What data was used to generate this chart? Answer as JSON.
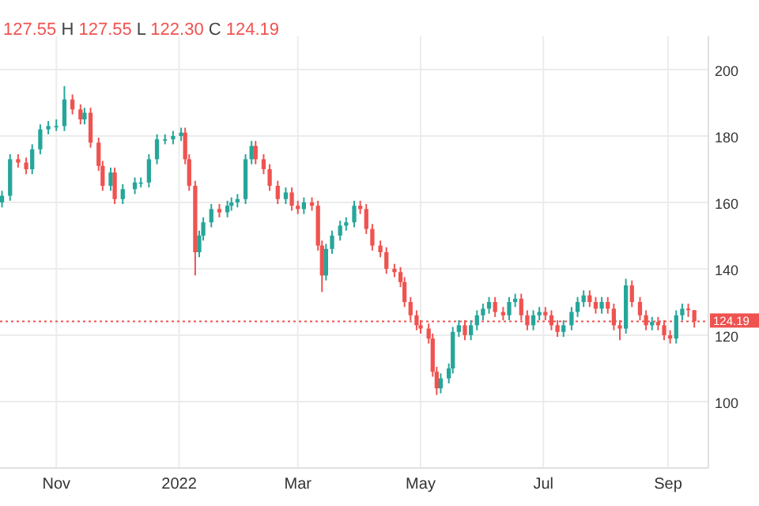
{
  "chart_data": {
    "type": "candlestick",
    "annotations": [
      "127.55 H 127.55 L 122.30 C 124.19"
    ],
    "x": [
      "2021-10-05",
      "2021-10-09",
      "2021-10-13",
      "2021-10-17",
      "2021-10-20",
      "2021-10-24",
      "2021-10-28",
      "2021-11-01",
      "2021-11-05",
      "2021-11-09",
      "2021-11-13",
      "2021-11-15",
      "2021-11-18",
      "2021-11-22",
      "2021-11-24",
      "2021-11-28",
      "2021-11-30",
      "2021-12-04",
      "2021-12-10",
      "2021-12-13",
      "2021-12-17",
      "2021-12-21",
      "2021-12-25",
      "2021-12-29",
      "2022-01-02",
      "2022-01-04",
      "2022-01-06",
      "2022-01-09",
      "2022-01-11",
      "2022-01-13",
      "2022-01-17",
      "2022-01-21",
      "2022-01-25",
      "2022-01-27",
      "2022-01-30",
      "2022-02-03",
      "2022-02-06",
      "2022-02-08",
      "2022-02-12",
      "2022-02-15",
      "2022-02-19",
      "2022-02-23",
      "2022-02-26",
      "2022-03-01",
      "2022-03-04",
      "2022-03-08",
      "2022-03-11",
      "2022-03-13",
      "2022-03-15",
      "2022-03-18",
      "2022-03-22",
      "2022-03-25",
      "2022-03-29",
      "2022-04-01",
      "2022-04-04",
      "2022-04-07",
      "2022-04-11",
      "2022-04-14",
      "2022-04-18",
      "2022-04-21",
      "2022-04-23",
      "2022-04-26",
      "2022-04-29",
      "2022-05-01",
      "2022-05-05",
      "2022-05-07",
      "2022-05-09",
      "2022-05-11",
      "2022-05-15",
      "2022-05-17",
      "2022-05-20",
      "2022-05-23",
      "2022-05-26",
      "2022-05-29",
      "2022-06-01",
      "2022-06-04",
      "2022-06-07",
      "2022-06-11",
      "2022-06-14",
      "2022-06-17",
      "2022-06-20",
      "2022-06-23",
      "2022-06-26",
      "2022-06-29",
      "2022-07-02",
      "2022-07-05",
      "2022-07-08",
      "2022-07-11",
      "2022-07-15",
      "2022-07-18",
      "2022-07-21",
      "2022-07-24",
      "2022-07-27",
      "2022-07-30",
      "2022-08-02",
      "2022-08-05",
      "2022-08-08",
      "2022-08-11",
      "2022-08-14",
      "2022-08-18",
      "2022-08-21",
      "2022-08-24",
      "2022-08-27",
      "2022-08-30",
      "2022-09-02",
      "2022-09-05",
      "2022-09-08",
      "2022-09-11",
      "2022-09-14"
    ],
    "ohlc": [
      [
        160,
        163.5,
        158.5,
        162
      ],
      [
        162,
        174.5,
        160.5,
        173
      ],
      [
        173,
        174.5,
        170.5,
        172
      ],
      [
        172,
        173.5,
        168.5,
        170
      ],
      [
        170,
        177.5,
        168.5,
        176
      ],
      [
        176,
        183.5,
        174.5,
        182
      ],
      [
        182,
        184.5,
        180.5,
        183
      ],
      [
        183,
        185,
        181.5,
        183
      ],
      [
        183,
        195,
        181.5,
        191
      ],
      [
        191,
        192.5,
        186.5,
        188
      ],
      [
        188,
        189.5,
        183.5,
        185
      ],
      [
        185,
        188.5,
        183.5,
        187
      ],
      [
        187,
        188.5,
        176.5,
        178
      ],
      [
        178,
        179.5,
        169.5,
        171
      ],
      [
        171,
        172.5,
        163.5,
        165
      ],
      [
        165,
        170.5,
        163.5,
        169
      ],
      [
        169,
        170.5,
        159.5,
        161
      ],
      [
        161,
        165.5,
        159.5,
        164
      ],
      [
        164,
        167.5,
        162.5,
        166
      ],
      [
        166,
        167.5,
        164.5,
        166
      ],
      [
        166,
        174.5,
        164.5,
        173
      ],
      [
        173,
        180.5,
        171.5,
        179
      ],
      [
        179,
        180.5,
        177.5,
        179
      ],
      [
        179,
        181.5,
        177.5,
        180
      ],
      [
        180,
        182.5,
        178.5,
        181
      ],
      [
        181,
        182.5,
        171.5,
        173
      ],
      [
        173,
        174.5,
        163.5,
        165
      ],
      [
        165,
        166.5,
        138,
        145
      ],
      [
        145,
        151.5,
        143.5,
        150
      ],
      [
        150,
        155.5,
        148.5,
        154
      ],
      [
        154,
        159.5,
        152.5,
        158
      ],
      [
        158,
        159.5,
        155.5,
        157
      ],
      [
        157,
        160.5,
        155.5,
        159
      ],
      [
        159,
        161.5,
        157.5,
        160
      ],
      [
        160,
        162.5,
        158.5,
        161
      ],
      [
        161,
        174.5,
        159.5,
        173
      ],
      [
        173,
        178.5,
        171.5,
        177
      ],
      [
        177,
        178.5,
        171.5,
        173
      ],
      [
        173,
        174.5,
        168.5,
        170
      ],
      [
        170,
        171.5,
        163.5,
        165
      ],
      [
        165,
        166.5,
        159.5,
        161
      ],
      [
        161,
        164.5,
        159.5,
        163
      ],
      [
        163,
        164.5,
        157.5,
        159
      ],
      [
        159,
        160.5,
        156.5,
        158
      ],
      [
        158,
        161.5,
        156.5,
        160
      ],
      [
        160,
        161.5,
        157.5,
        159
      ],
      [
        159,
        160.5,
        145.5,
        147
      ],
      [
        147,
        148.5,
        133,
        138
      ],
      [
        138,
        147.5,
        136.5,
        146
      ],
      [
        146,
        151.5,
        144.5,
        150
      ],
      [
        150,
        154.5,
        148.5,
        153
      ],
      [
        153,
        155.5,
        151.5,
        154
      ],
      [
        154,
        160.5,
        152.5,
        159
      ],
      [
        159,
        160.5,
        156.5,
        158
      ],
      [
        158,
        159.5,
        150.5,
        152
      ],
      [
        152,
        153.5,
        145.5,
        147
      ],
      [
        147,
        148.5,
        143.5,
        145
      ],
      [
        145,
        146.5,
        138.5,
        140
      ],
      [
        140,
        141.5,
        137.5,
        139
      ],
      [
        139,
        140.5,
        134.5,
        136
      ],
      [
        136,
        137.5,
        128.5,
        130
      ],
      [
        130,
        131.5,
        124.5,
        126
      ],
      [
        126,
        127.5,
        121.5,
        123
      ],
      [
        123,
        124.5,
        120.5,
        122
      ],
      [
        122,
        123.5,
        117.5,
        119
      ],
      [
        119,
        120.5,
        107.5,
        109
      ],
      [
        109,
        110.5,
        102,
        104
      ],
      [
        104,
        108.5,
        102.5,
        107
      ],
      [
        107,
        111.5,
        105.5,
        110
      ],
      [
        110,
        122.5,
        108.5,
        121
      ],
      [
        121,
        124.5,
        119.5,
        123
      ],
      [
        123,
        124.5,
        118.5,
        120
      ],
      [
        120,
        124.5,
        118.5,
        123
      ],
      [
        123,
        127.5,
        121.5,
        126
      ],
      [
        126,
        129.5,
        124.5,
        128
      ],
      [
        128,
        131.5,
        126.5,
        130
      ],
      [
        130,
        131.5,
        125.5,
        127
      ],
      [
        127,
        128.5,
        124.5,
        126
      ],
      [
        126,
        131.5,
        124.5,
        130
      ],
      [
        130,
        132.5,
        128.5,
        131
      ],
      [
        131,
        132.5,
        124.5,
        126
      ],
      [
        126,
        127.5,
        121.5,
        123
      ],
      [
        123,
        127.5,
        121.5,
        126
      ],
      [
        126,
        128.5,
        124.5,
        127
      ],
      [
        127,
        128.5,
        124.5,
        126
      ],
      [
        126,
        127.5,
        121.5,
        123
      ],
      [
        123,
        124.5,
        119.5,
        121
      ],
      [
        121,
        124.5,
        119.5,
        123
      ],
      [
        123,
        128.5,
        121.5,
        127
      ],
      [
        127,
        131.5,
        125.5,
        130
      ],
      [
        130,
        133.5,
        128.5,
        132
      ],
      [
        132,
        133.5,
        128.5,
        130
      ],
      [
        130,
        131.5,
        126.5,
        128
      ],
      [
        128,
        131.5,
        126.5,
        130
      ],
      [
        130,
        131.5,
        126.5,
        128
      ],
      [
        128,
        129.5,
        121.5,
        123
      ],
      [
        123,
        124.5,
        118.5,
        122
      ],
      [
        122,
        137,
        120.5,
        135
      ],
      [
        135,
        136.5,
        128.5,
        130
      ],
      [
        130,
        131.5,
        124.5,
        126
      ],
      [
        126,
        127.5,
        121.5,
        123
      ],
      [
        123,
        125.5,
        121.5,
        124
      ],
      [
        124,
        125.5,
        121.5,
        123
      ],
      [
        123,
        124.5,
        118.5,
        120
      ],
      [
        120,
        121.5,
        117.5,
        119
      ],
      [
        119,
        127.5,
        117.5,
        126
      ],
      [
        126,
        129.5,
        124.5,
        128
      ],
      [
        128,
        129.5,
        125.5,
        127.55
      ],
      [
        127.55,
        127.55,
        122.3,
        124.19
      ]
    ],
    "xlim": [
      "2021-10-04",
      "2022-09-21"
    ],
    "xticks": [
      {
        "value": "2021-11-01",
        "label": "Nov"
      },
      {
        "value": "2022-01-01",
        "label": "2022"
      },
      {
        "value": "2022-03-01",
        "label": "Mar"
      },
      {
        "value": "2022-05-01",
        "label": "May"
      },
      {
        "value": "2022-07-01",
        "label": "Jul"
      },
      {
        "value": "2022-09-01",
        "label": "Sep"
      }
    ],
    "ylim": [
      80,
      210
    ],
    "yticks": [
      100,
      120,
      140,
      160,
      180,
      200
    ],
    "grid": true,
    "ref_lines": [
      {
        "axis": "y",
        "value": 124.19,
        "label": "124.19",
        "color": "#ef5350",
        "line_style": "dotted"
      }
    ]
  }
}
